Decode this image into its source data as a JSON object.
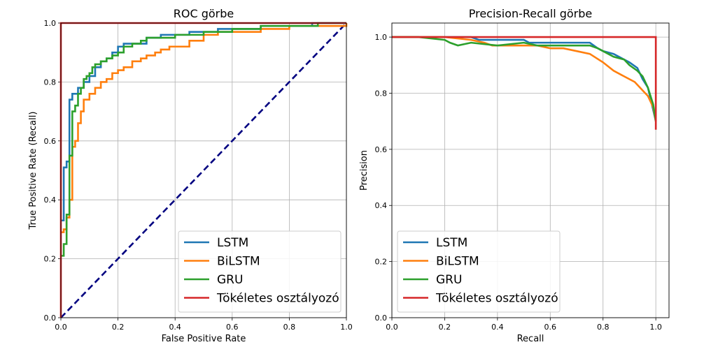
{
  "colors": {
    "LSTM": "#1f77b4",
    "BiLSTM": "#ff7f0e",
    "GRU": "#2ca02c",
    "Tökéletes osztályozó": "#d62728",
    "diagonal": "#000080"
  },
  "chart_data": [
    {
      "type": "line",
      "title": "ROC görbe",
      "xlabel": "False Positive Rate",
      "ylabel": "True Positive Rate (Recall)",
      "xlim": [
        0.0,
        1.0
      ],
      "ylim": [
        0.0,
        1.0
      ],
      "xticks": [
        "0.0",
        "0.2",
        "0.4",
        "0.6",
        "0.8",
        "1.0"
      ],
      "yticks": [
        "0.0",
        "0.2",
        "0.4",
        "0.6",
        "0.8",
        "1.0"
      ],
      "grid": true,
      "legend": "lower-right",
      "series": [
        {
          "name": "LSTM",
          "x": [
            0.0,
            0.01,
            0.01,
            0.02,
            0.02,
            0.03,
            0.03,
            0.04,
            0.04,
            0.06,
            0.06,
            0.08,
            0.08,
            0.1,
            0.12,
            0.14,
            0.16,
            0.18,
            0.2,
            0.22,
            0.26,
            0.3,
            0.35,
            0.4,
            0.45,
            0.5,
            0.55,
            0.6,
            0.7,
            0.8,
            0.88,
            1.0
          ],
          "y": [
            0.33,
            0.33,
            0.51,
            0.51,
            0.53,
            0.53,
            0.74,
            0.74,
            0.76,
            0.76,
            0.78,
            0.78,
            0.8,
            0.82,
            0.85,
            0.87,
            0.88,
            0.9,
            0.92,
            0.93,
            0.93,
            0.95,
            0.96,
            0.96,
            0.97,
            0.97,
            0.98,
            0.98,
            0.99,
            0.99,
            1.0,
            1.0
          ]
        },
        {
          "name": "BiLSTM",
          "x": [
            0.0,
            0.01,
            0.01,
            0.02,
            0.02,
            0.03,
            0.03,
            0.04,
            0.05,
            0.06,
            0.07,
            0.08,
            0.1,
            0.12,
            0.14,
            0.16,
            0.18,
            0.2,
            0.22,
            0.25,
            0.28,
            0.3,
            0.33,
            0.35,
            0.38,
            0.4,
            0.45,
            0.5,
            0.55,
            0.6,
            0.7,
            0.75,
            0.8,
            0.88,
            1.0
          ],
          "y": [
            0.29,
            0.29,
            0.3,
            0.3,
            0.34,
            0.34,
            0.4,
            0.58,
            0.6,
            0.66,
            0.7,
            0.74,
            0.76,
            0.78,
            0.8,
            0.81,
            0.83,
            0.84,
            0.85,
            0.87,
            0.88,
            0.89,
            0.9,
            0.91,
            0.92,
            0.92,
            0.94,
            0.96,
            0.97,
            0.97,
            0.98,
            0.98,
            0.99,
            0.99,
            1.0
          ]
        },
        {
          "name": "GRU",
          "x": [
            0.0,
            0.01,
            0.01,
            0.02,
            0.02,
            0.03,
            0.03,
            0.04,
            0.04,
            0.05,
            0.06,
            0.07,
            0.08,
            0.09,
            0.1,
            0.11,
            0.12,
            0.14,
            0.16,
            0.18,
            0.2,
            0.22,
            0.25,
            0.28,
            0.3,
            0.35,
            0.4,
            0.45,
            0.5,
            0.55,
            0.6,
            0.65,
            0.7,
            0.8,
            0.9,
            1.0
          ],
          "y": [
            0.21,
            0.21,
            0.25,
            0.25,
            0.35,
            0.35,
            0.55,
            0.6,
            0.7,
            0.72,
            0.76,
            0.78,
            0.81,
            0.82,
            0.83,
            0.85,
            0.86,
            0.87,
            0.88,
            0.89,
            0.9,
            0.92,
            0.93,
            0.94,
            0.95,
            0.95,
            0.96,
            0.96,
            0.97,
            0.97,
            0.98,
            0.98,
            0.99,
            0.99,
            1.0,
            1.0
          ]
        },
        {
          "name": "Tökéletes osztályozó",
          "x": [
            0.0,
            0.0,
            1.0
          ],
          "y": [
            0.0,
            1.0,
            1.0
          ]
        }
      ],
      "reference_line": {
        "x": [
          0.0,
          1.0
        ],
        "y": [
          0.0,
          1.0
        ],
        "style": "dashed"
      }
    },
    {
      "type": "line",
      "title": "Precision-Recall görbe",
      "xlabel": "Recall",
      "ylabel": "Precision",
      "xlim": [
        0.0,
        1.05
      ],
      "ylim": [
        0.0,
        1.05
      ],
      "xticks": [
        "0.0",
        "0.2",
        "0.4",
        "0.6",
        "0.8",
        "1.0"
      ],
      "yticks": [
        "0.0",
        "0.2",
        "0.4",
        "0.6",
        "0.8",
        "1.0"
      ],
      "grid": true,
      "legend": "lower-left",
      "series": [
        {
          "name": "LSTM",
          "x": [
            0.0,
            0.1,
            0.2,
            0.3,
            0.33,
            0.4,
            0.5,
            0.52,
            0.6,
            0.7,
            0.75,
            0.78,
            0.8,
            0.84,
            0.88,
            0.9,
            0.93,
            0.95,
            0.97,
            0.98,
            0.99,
            1.0
          ],
          "y": [
            1.0,
            1.0,
            1.0,
            1.0,
            0.99,
            0.99,
            0.99,
            0.98,
            0.98,
            0.98,
            0.98,
            0.96,
            0.95,
            0.94,
            0.92,
            0.91,
            0.89,
            0.85,
            0.82,
            0.78,
            0.74,
            0.7
          ]
        },
        {
          "name": "BiLSTM",
          "x": [
            0.0,
            0.1,
            0.2,
            0.3,
            0.35,
            0.38,
            0.4,
            0.5,
            0.55,
            0.6,
            0.65,
            0.7,
            0.75,
            0.8,
            0.84,
            0.88,
            0.9,
            0.92,
            0.95,
            0.97,
            0.99,
            1.0
          ],
          "y": [
            1.0,
            1.0,
            1.0,
            0.99,
            0.98,
            0.97,
            0.97,
            0.97,
            0.97,
            0.96,
            0.96,
            0.95,
            0.94,
            0.91,
            0.88,
            0.86,
            0.85,
            0.84,
            0.81,
            0.79,
            0.75,
            0.7
          ]
        },
        {
          "name": "GRU",
          "x": [
            0.0,
            0.1,
            0.2,
            0.22,
            0.25,
            0.3,
            0.4,
            0.5,
            0.55,
            0.6,
            0.65,
            0.7,
            0.75,
            0.78,
            0.8,
            0.84,
            0.88,
            0.9,
            0.93,
            0.95,
            0.97,
            0.99,
            1.0
          ],
          "y": [
            1.0,
            1.0,
            0.99,
            0.98,
            0.97,
            0.98,
            0.97,
            0.98,
            0.97,
            0.97,
            0.97,
            0.97,
            0.97,
            0.96,
            0.95,
            0.93,
            0.92,
            0.9,
            0.88,
            0.86,
            0.82,
            0.76,
            0.7
          ]
        },
        {
          "name": "Tökéletes osztályozó",
          "x": [
            0.0,
            1.0,
            1.0
          ],
          "y": [
            1.0,
            1.0,
            0.67
          ]
        }
      ]
    }
  ]
}
